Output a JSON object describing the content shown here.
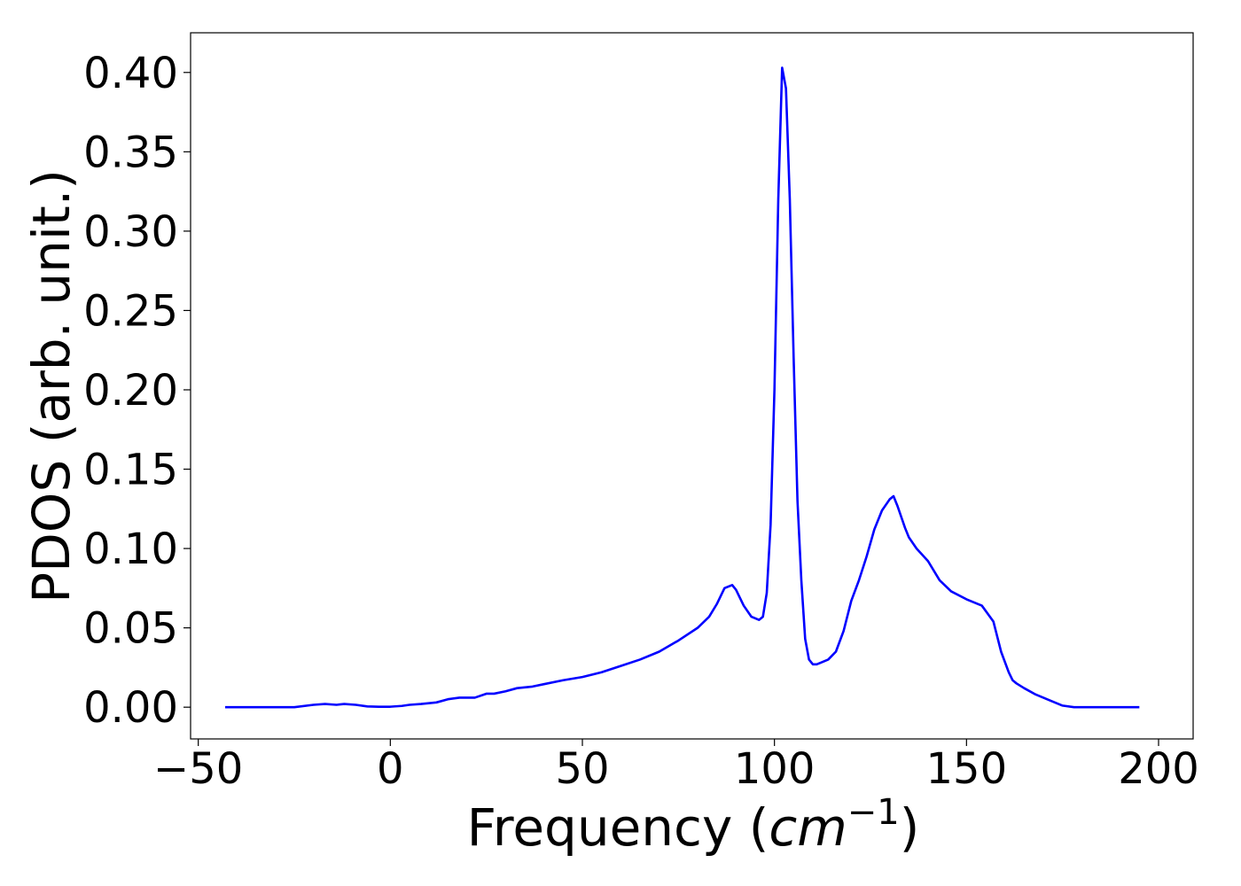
{
  "chart_data": {
    "type": "line",
    "xlabel": "Frequency",
    "xlabel_unit_open": "(",
    "xlabel_unit": "cm",
    "xlabel_unit_exp": "−1",
    "xlabel_unit_close": ")",
    "ylabel": "PDOS (arb. unit.)",
    "xlim": [
      -52,
      209
    ],
    "ylim": [
      -0.02,
      0.425
    ],
    "xticks": [
      -50,
      0,
      50,
      100,
      150,
      200
    ],
    "xtick_labels": [
      "−50",
      "0",
      "50",
      "100",
      "150",
      "200"
    ],
    "yticks": [
      0.0,
      0.05,
      0.1,
      0.15,
      0.2,
      0.25,
      0.3,
      0.35,
      0.4
    ],
    "ytick_labels": [
      "0.00",
      "0.05",
      "0.10",
      "0.15",
      "0.20",
      "0.25",
      "0.30",
      "0.35",
      "0.40"
    ],
    "grid": false,
    "legend": false,
    "line_color": "#0000ff",
    "series": [
      {
        "x": [
          -43,
          -30,
          -25,
          -20,
          -17,
          -14,
          -12,
          -9,
          -6,
          -3,
          0,
          3,
          5,
          8,
          12,
          15,
          18,
          22,
          25,
          27,
          30,
          33,
          37,
          40,
          45,
          50,
          55,
          60,
          65,
          70,
          75,
          80,
          83,
          85,
          87,
          89,
          90,
          92,
          94,
          96,
          97,
          98,
          99,
          100,
          101,
          102,
          103,
          104,
          105,
          106,
          107,
          108,
          109,
          110,
          111,
          112,
          114,
          116,
          118,
          120,
          122,
          124,
          126,
          128,
          130,
          131,
          132,
          133,
          134,
          135,
          137,
          140,
          143,
          146,
          150,
          154,
          157,
          159,
          161,
          162,
          163,
          165,
          168,
          172,
          175,
          178,
          182,
          190,
          195
        ],
        "y": [
          0.0,
          0.0,
          0.0,
          0.0015,
          0.002,
          0.0015,
          0.002,
          0.0015,
          0.0005,
          0.0003,
          0.0003,
          0.0008,
          0.0015,
          0.002,
          0.003,
          0.005,
          0.006,
          0.006,
          0.0085,
          0.0085,
          0.01,
          0.012,
          0.013,
          0.0145,
          0.017,
          0.019,
          0.022,
          0.026,
          0.03,
          0.035,
          0.042,
          0.05,
          0.057,
          0.065,
          0.075,
          0.077,
          0.074,
          0.064,
          0.057,
          0.055,
          0.057,
          0.072,
          0.115,
          0.2,
          0.32,
          0.403,
          0.39,
          0.32,
          0.22,
          0.13,
          0.08,
          0.043,
          0.03,
          0.027,
          0.027,
          0.028,
          0.03,
          0.035,
          0.048,
          0.067,
          0.08,
          0.095,
          0.112,
          0.124,
          0.131,
          0.133,
          0.127,
          0.12,
          0.113,
          0.107,
          0.1,
          0.092,
          0.08,
          0.073,
          0.068,
          0.064,
          0.054,
          0.035,
          0.022,
          0.017,
          0.015,
          0.012,
          0.008,
          0.004,
          0.001,
          0.0,
          0.0,
          0.0,
          0.0
        ]
      }
    ]
  }
}
